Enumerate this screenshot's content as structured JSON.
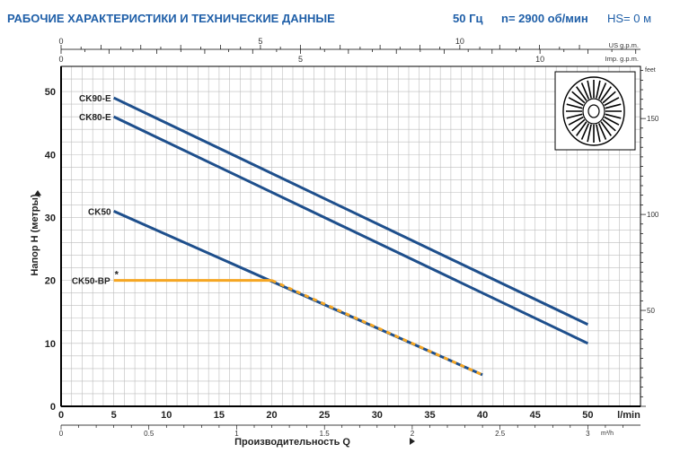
{
  "header": {
    "title": "РАБОЧИЕ ХАРАКТЕРИСТИКИ И ТЕХНИЧЕСКИЕ ДАННЫЕ",
    "frequency": "50 Гц",
    "speed": "n= 2900 об/мин",
    "suction_height": "HS= 0 м"
  },
  "colors": {
    "header_text": "#1f5fa8",
    "curve": "#1e4f8c",
    "curve_bp": "#f5a623",
    "grid": "#bdbdbd",
    "axis": "#000000"
  },
  "chart_data": {
    "type": "line",
    "title": "",
    "xlabel": "Производительность Q",
    "ylabel": "Напор H (метры)",
    "x_unit": "l/min",
    "xlim": [
      0,
      55
    ],
    "ylim": [
      0,
      54
    ],
    "grid": true,
    "x_ticks": [
      0,
      5,
      10,
      15,
      20,
      25,
      30,
      35,
      40,
      45,
      50
    ],
    "y_ticks": [
      0,
      10,
      20,
      30,
      40,
      50
    ],
    "secondary_axes": {
      "us_gpm": {
        "label": "US g.p.m.",
        "ticks": [
          0,
          5,
          10
        ]
      },
      "imp_gpm": {
        "label": "Imp. g.p.m.",
        "ticks": [
          0,
          5,
          10
        ]
      },
      "feet": {
        "label": "feet",
        "ticks": [
          50,
          100,
          150
        ]
      },
      "m3h": {
        "label": "m³/h",
        "ticks": [
          "0",
          "0.5",
          "1",
          "1.5",
          "2",
          "2.5",
          "3"
        ]
      }
    },
    "series": [
      {
        "name": "CK90-E",
        "x": [
          5,
          50
        ],
        "y": [
          49,
          13
        ]
      },
      {
        "name": "CK80-E",
        "x": [
          5,
          50
        ],
        "y": [
          46,
          10
        ]
      },
      {
        "name": "CK50",
        "x": [
          5,
          40
        ],
        "y": [
          31,
          5
        ]
      },
      {
        "name": "CK50-BP",
        "marker": "*",
        "x": [
          5,
          20,
          40
        ],
        "y": [
          20,
          20,
          5
        ],
        "style": "orange flat then dashed along CK50"
      }
    ]
  },
  "icon": {
    "name": "impeller-icon"
  }
}
